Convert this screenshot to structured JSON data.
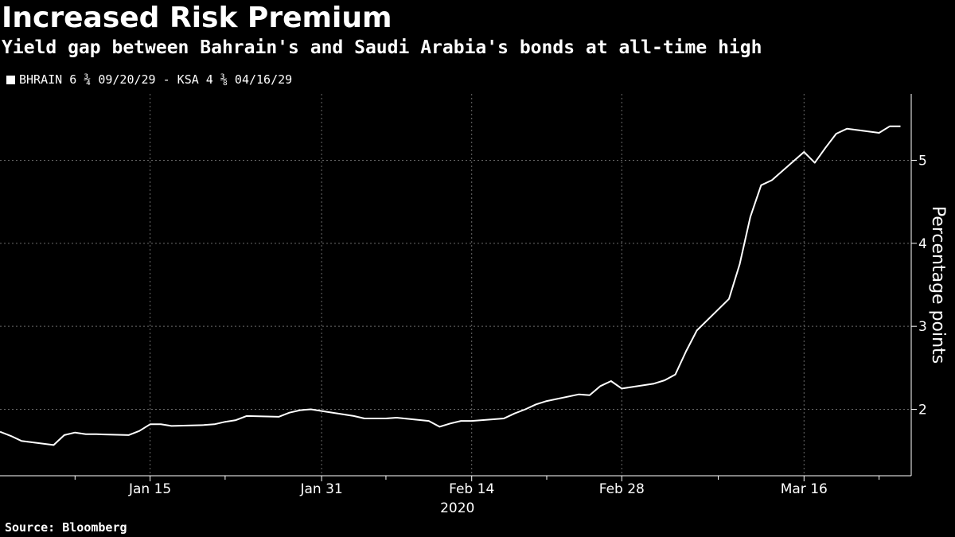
{
  "chart_data": {
    "type": "line",
    "title": "Increased Risk Premium",
    "subtitle": "Yield gap between Bahrain's and Saudi Arabia's bonds at all-time high",
    "source": "Source: Bloomberg",
    "legend": {
      "label": "BHRAIN 6 ¾ 09/20/29 - KSA 4 ⅜ 04/16/29",
      "color": "#ffffff"
    },
    "ylabel": "Percentage points",
    "ylim": [
      1.2,
      5.8
    ],
    "y_ticks": [
      2,
      3,
      4,
      5
    ],
    "x_domain": [
      "2020-01-01",
      "2020-03-26"
    ],
    "x_ticks": [
      {
        "date": "2020-01-15",
        "label": "Jan 15"
      },
      {
        "date": "2020-01-31",
        "label": "Jan 31"
      },
      {
        "date": "2020-02-14",
        "label": "Feb 14"
      },
      {
        "date": "2020-02-28",
        "label": "Feb 28"
      },
      {
        "date": "2020-03-16",
        "label": "Mar 16"
      }
    ],
    "minor_ticks": [
      "2020-01-08",
      "2020-01-22",
      "2020-02-06",
      "2020-02-21",
      "2020-03-08",
      "2020-03-23"
    ],
    "year_label": "2020",
    "grid": true,
    "series": [
      {
        "name": "BHRAIN 6 ¾ 09/20/29 - KSA 4 ⅜ 04/16/29",
        "color": "#ffffff",
        "x": [
          "2020-01-01",
          "2020-01-02",
          "2020-01-03",
          "2020-01-06",
          "2020-01-07",
          "2020-01-08",
          "2020-01-09",
          "2020-01-10",
          "2020-01-13",
          "2020-01-14",
          "2020-01-15",
          "2020-01-16",
          "2020-01-17",
          "2020-01-20",
          "2020-01-21",
          "2020-01-22",
          "2020-01-23",
          "2020-01-24",
          "2020-01-27",
          "2020-01-28",
          "2020-01-29",
          "2020-01-30",
          "2020-01-31",
          "2020-02-03",
          "2020-02-04",
          "2020-02-05",
          "2020-02-06",
          "2020-02-07",
          "2020-02-10",
          "2020-02-11",
          "2020-02-12",
          "2020-02-13",
          "2020-02-14",
          "2020-02-17",
          "2020-02-18",
          "2020-02-19",
          "2020-02-20",
          "2020-02-21",
          "2020-02-24",
          "2020-02-25",
          "2020-02-26",
          "2020-02-27",
          "2020-02-28",
          "2020-03-02",
          "2020-03-03",
          "2020-03-04",
          "2020-03-05",
          "2020-03-06",
          "2020-03-09",
          "2020-03-10",
          "2020-03-11",
          "2020-03-12",
          "2020-03-13",
          "2020-03-16",
          "2020-03-17",
          "2020-03-18",
          "2020-03-19",
          "2020-03-20",
          "2020-03-23",
          "2020-03-24",
          "2020-03-25"
        ],
        "values": [
          1.73,
          1.68,
          1.62,
          1.57,
          1.69,
          1.72,
          1.7,
          1.7,
          1.69,
          1.74,
          1.82,
          1.82,
          1.8,
          1.81,
          1.82,
          1.85,
          1.87,
          1.92,
          1.91,
          1.96,
          1.99,
          2.0,
          1.98,
          1.92,
          1.89,
          1.89,
          1.89,
          1.9,
          1.86,
          1.79,
          1.83,
          1.86,
          1.86,
          1.89,
          1.95,
          2.0,
          2.06,
          2.1,
          2.18,
          2.17,
          2.28,
          2.34,
          2.25,
          2.31,
          2.35,
          2.42,
          2.7,
          2.95,
          3.33,
          3.75,
          4.32,
          4.7,
          4.76,
          5.1,
          4.97,
          5.15,
          5.32,
          5.38,
          5.33,
          5.41,
          5.41
        ]
      }
    ]
  }
}
